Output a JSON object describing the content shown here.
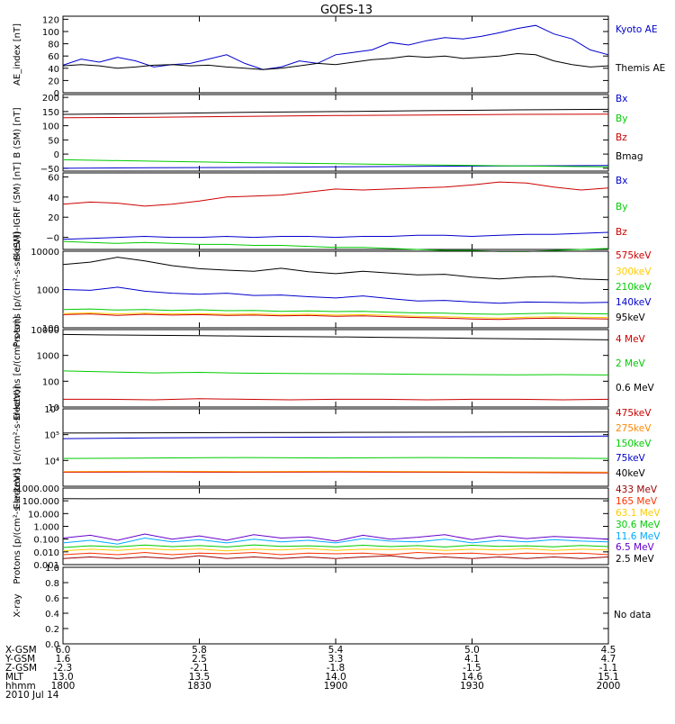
{
  "title": "GOES-13",
  "date_label": "2010 Jul 14",
  "no_data_label": "No data",
  "ephemeris": {
    "row_labels": [
      "X-GSM",
      "Y-GSM",
      "Z-GSM",
      "MLT",
      "hhmm"
    ],
    "columns": [
      [
        "6.0",
        "1.6",
        "-2.3",
        "13.0",
        "1800"
      ],
      [
        "5.8",
        "2.5",
        "-2.1",
        "13.5",
        "1830"
      ],
      [
        "5.4",
        "3.3",
        "-1.8",
        "14.0",
        "1900"
      ],
      [
        "5.0",
        "4.1",
        "-1.5",
        "14.6",
        "1930"
      ],
      [
        "4.5",
        "4.7",
        "-1.1",
        "15.1",
        "2000"
      ]
    ]
  },
  "chart_data": [
    {
      "type": "line",
      "ylabel": "AE_index [nT]",
      "ylim": [
        0,
        125
      ],
      "yticks": [
        0,
        20,
        40,
        60,
        80,
        100,
        120
      ],
      "ytick_labels": [
        "0",
        "20",
        "40",
        "60",
        "80",
        "100",
        "120"
      ],
      "x": [
        0,
        4,
        8,
        12,
        16,
        20,
        24,
        28,
        32,
        36,
        40,
        44,
        48,
        52,
        56,
        60,
        64,
        68,
        72,
        76,
        80,
        84,
        88,
        92,
        96,
        100,
        104,
        108,
        112,
        116,
        120
      ],
      "series": [
        {
          "name": "Kyoto AE",
          "color": "#0000cc",
          "values": [
            45,
            55,
            50,
            58,
            52,
            42,
            46,
            48,
            55,
            62,
            48,
            38,
            42,
            52,
            48,
            62,
            66,
            70,
            82,
            78,
            85,
            90,
            88,
            92,
            98,
            105,
            110,
            96,
            88,
            70,
            62
          ]
        },
        {
          "name": "Themis AE",
          "color": "#000000",
          "values": [
            44,
            46,
            44,
            40,
            42,
            45,
            46,
            44,
            45,
            42,
            40,
            38,
            40,
            44,
            48,
            46,
            50,
            54,
            56,
            60,
            58,
            60,
            56,
            58,
            60,
            64,
            62,
            52,
            46,
            42,
            44
          ]
        }
      ]
    },
    {
      "type": "line",
      "ylabel": "B (SM) [nT]",
      "ylim": [
        -60,
        210
      ],
      "yticks": [
        -50,
        0,
        50,
        100,
        150,
        200
      ],
      "ytick_labels": [
        "−50",
        "0",
        "50",
        "100",
        "150",
        "200"
      ],
      "x": [
        0,
        20,
        40,
        60,
        80,
        100,
        120
      ],
      "series": [
        {
          "name": "Bx",
          "color": "#0000cc",
          "values": [
            -50,
            -48,
            -47,
            -45,
            -43,
            -42,
            -40
          ]
        },
        {
          "name": "By",
          "color": "#00cc00",
          "values": [
            -20,
            -25,
            -30,
            -34,
            -38,
            -42,
            -45
          ]
        },
        {
          "name": "Bz",
          "color": "#cc0000",
          "values": [
            128,
            130,
            133,
            136,
            138,
            140,
            141
          ]
        },
        {
          "name": "Bmag",
          "color": "#000000",
          "values": [
            140,
            143,
            147,
            150,
            153,
            156,
            158
          ]
        }
      ]
    },
    {
      "type": "line",
      "ylabel": "B (SM)-IGRF (SM) [nT]",
      "ylim": [
        -12,
        64
      ],
      "yticks": [
        0,
        20,
        40,
        60
      ],
      "ytick_labels": [
        "−0",
        "20",
        "40",
        "60"
      ],
      "x": [
        0,
        6,
        12,
        18,
        24,
        30,
        36,
        42,
        48,
        54,
        60,
        66,
        72,
        78,
        84,
        90,
        96,
        102,
        108,
        114,
        120
      ],
      "series": [
        {
          "name": "Bx",
          "color": "#0000cc",
          "values": [
            -2,
            -1,
            0,
            1,
            0,
            0,
            1,
            0,
            1,
            1,
            0,
            1,
            1,
            2,
            2,
            1,
            2,
            3,
            3,
            4,
            5
          ]
        },
        {
          "name": "By",
          "color": "#00cc00",
          "values": [
            -4,
            -5,
            -6,
            -5,
            -6,
            -7,
            -7,
            -8,
            -8,
            -9,
            -10,
            -10,
            -11,
            -12,
            -13,
            -13,
            -14,
            -14,
            -13,
            -12,
            -11
          ]
        },
        {
          "name": "Bz",
          "color": "#cc0000",
          "values": [
            33,
            35,
            34,
            31,
            33,
            36,
            40,
            41,
            42,
            45,
            48,
            47,
            48,
            49,
            50,
            52,
            55,
            54,
            50,
            47,
            49
          ]
        }
      ]
    },
    {
      "type": "line",
      "ylabel": "Protons [p/(cm²-s-sr-keV)]",
      "yscale": "log",
      "ylim": [
        100,
        10000
      ],
      "yticks": [
        100,
        1000,
        10000
      ],
      "ytick_labels": [
        "100",
        "1000",
        "10000"
      ],
      "x": [
        0,
        6,
        12,
        18,
        24,
        30,
        36,
        42,
        48,
        54,
        60,
        66,
        72,
        78,
        84,
        90,
        96,
        102,
        108,
        114,
        120
      ],
      "series": [
        {
          "name": "575keV",
          "color": "#cc0000",
          "values": [
            220,
            230,
            210,
            225,
            215,
            220,
            210,
            215,
            205,
            210,
            200,
            205,
            195,
            185,
            180,
            170,
            165,
            175,
            180,
            175,
            170
          ]
        },
        {
          "name": "300keV",
          "color": "#ffcc00",
          "values": [
            235,
            245,
            230,
            240,
            230,
            235,
            225,
            230,
            220,
            225,
            215,
            220,
            210,
            200,
            195,
            185,
            180,
            190,
            195,
            190,
            185
          ]
        },
        {
          "name": "210keV",
          "color": "#00cc00",
          "values": [
            300,
            310,
            290,
            300,
            285,
            295,
            280,
            285,
            270,
            275,
            265,
            270,
            255,
            245,
            240,
            230,
            225,
            235,
            240,
            235,
            230
          ]
        },
        {
          "name": "140keV",
          "color": "#0000cc",
          "values": [
            1000,
            950,
            1150,
            900,
            800,
            750,
            800,
            700,
            720,
            650,
            600,
            680,
            580,
            500,
            520,
            470,
            440,
            470,
            460,
            450,
            460
          ]
        },
        {
          "name": "95keV",
          "color": "#000000",
          "values": [
            4500,
            5200,
            7000,
            5600,
            4200,
            3500,
            3200,
            3000,
            3600,
            2900,
            2600,
            3000,
            2700,
            2400,
            2500,
            2100,
            1900,
            2100,
            2200,
            1900,
            1800
          ]
        }
      ]
    },
    {
      "type": "line",
      "ylabel": "Electrons [e/(cm²-s-sr)]",
      "yscale": "log",
      "ylim": [
        10,
        10000
      ],
      "yticks": [
        10,
        100,
        1000,
        10000
      ],
      "ytick_labels": [
        "10",
        "100",
        "1000",
        "10000"
      ],
      "x": [
        0,
        10,
        20,
        30,
        40,
        50,
        60,
        70,
        80,
        90,
        100,
        110,
        120
      ],
      "series": [
        {
          "name": "4 MeV",
          "color": "#cc0000",
          "values": [
            20,
            20,
            19,
            21,
            20,
            19,
            20,
            20,
            19,
            20,
            20,
            19,
            20
          ]
        },
        {
          "name": "2 MeV",
          "color": "#00cc00",
          "values": [
            250,
            230,
            210,
            220,
            205,
            200,
            195,
            190,
            185,
            180,
            178,
            180,
            175
          ]
        },
        {
          "name": "0.6 MeV",
          "color": "#000000",
          "values": [
            6500,
            6200,
            6000,
            5800,
            5600,
            5400,
            5200,
            5000,
            4800,
            4600,
            4400,
            4200,
            4000
          ]
        }
      ]
    },
    {
      "type": "line",
      "ylabel": "Electrons [e/(cm²-s-sr-keV)]",
      "yscale": "log",
      "ylim": [
        1000,
        1000000
      ],
      "yticks": [
        10000,
        100000,
        1000000
      ],
      "ytick_labels": [
        "10⁴",
        "10⁵",
        "10⁶"
      ],
      "x": [
        0,
        20,
        40,
        60,
        80,
        100,
        120
      ],
      "series": [
        {
          "name": "475keV",
          "color": "#cc0000",
          "values": [
            3500,
            3600,
            3500,
            3600,
            3500,
            3400,
            3300
          ]
        },
        {
          "name": "275keV",
          "color": "#ff8800",
          "values": [
            3700,
            3800,
            3700,
            3800,
            3700,
            3600,
            3500
          ]
        },
        {
          "name": "150keV",
          "color": "#00cc00",
          "values": [
            12000,
            12500,
            13000,
            12500,
            13000,
            12500,
            12000
          ]
        },
        {
          "name": "75keV",
          "color": "#0000cc",
          "values": [
            70000,
            75000,
            78000,
            80000,
            82000,
            85000,
            88000
          ]
        },
        {
          "name": "40keV",
          "color": "#000000",
          "values": [
            115000,
            118000,
            120000,
            122000,
            124000,
            125000,
            126000
          ]
        }
      ]
    },
    {
      "type": "line",
      "ylabel": "Protons [p/(cm²-s-sr-keV)]",
      "yscale": "log",
      "ylim": [
        0.001,
        1000
      ],
      "yticks": [
        0.001,
        0.01,
        0.1,
        1,
        10,
        100,
        1000
      ],
      "ytick_labels": [
        "0.001",
        "0.010",
        "0.100",
        "1.000",
        "10.000",
        "100.000",
        "1000.000"
      ],
      "x": [
        0,
        6,
        12,
        18,
        24,
        30,
        36,
        42,
        48,
        54,
        60,
        66,
        72,
        78,
        84,
        90,
        96,
        102,
        108,
        114,
        120
      ],
      "series": [
        {
          "name": "433 MeV",
          "color": "#990000",
          "values": [
            0.003,
            0.004,
            0.003,
            0.004,
            0.003,
            0.005,
            0.003,
            0.004,
            0.003,
            0.004,
            0.003,
            0.004,
            0.005,
            0.003,
            0.004,
            0.003,
            0.004,
            0.003,
            0.004,
            0.003,
            0.004
          ]
        },
        {
          "name": "165 MeV",
          "color": "#ff3300",
          "values": [
            0.006,
            0.008,
            0.006,
            0.009,
            0.006,
            0.008,
            0.007,
            0.009,
            0.006,
            0.008,
            0.007,
            0.008,
            0.006,
            0.009,
            0.007,
            0.008,
            0.006,
            0.008,
            0.007,
            0.008,
            0.006
          ]
        },
        {
          "name": "63.1 MeV",
          "color": "#ffcc00",
          "values": [
            0.012,
            0.016,
            0.013,
            0.018,
            0.014,
            0.017,
            0.012,
            0.016,
            0.014,
            0.018,
            0.013,
            0.016,
            0.015,
            0.017,
            0.013,
            0.016,
            0.014,
            0.018,
            0.013,
            0.016,
            0.014
          ]
        },
        {
          "name": "30.6 MeV",
          "color": "#00cc00",
          "values": [
            0.022,
            0.03,
            0.025,
            0.034,
            0.026,
            0.031,
            0.024,
            0.035,
            0.027,
            0.03,
            0.025,
            0.033,
            0.026,
            0.031,
            0.024,
            0.033,
            0.027,
            0.03,
            0.025,
            0.032,
            0.026
          ]
        },
        {
          "name": "11.6 MeV",
          "color": "#00aaff",
          "values": [
            0.05,
            0.08,
            0.04,
            0.12,
            0.06,
            0.09,
            0.05,
            0.1,
            0.06,
            0.08,
            0.05,
            0.11,
            0.07,
            0.06,
            0.1,
            0.05,
            0.08,
            0.06,
            0.09,
            0.07,
            0.06
          ]
        },
        {
          "name": "6.5 MeV",
          "color": "#6600cc",
          "values": [
            0.12,
            0.2,
            0.08,
            0.25,
            0.1,
            0.18,
            0.08,
            0.22,
            0.12,
            0.15,
            0.07,
            0.2,
            0.1,
            0.14,
            0.22,
            0.09,
            0.18,
            0.11,
            0.16,
            0.13,
            0.1
          ]
        },
        {
          "name": "2.5 MeV",
          "color": "#000000",
          "values": [
            150,
            145,
            148,
            146,
            150,
            147,
            145,
            148,
            146,
            149,
            147,
            145,
            148,
            146,
            149,
            147,
            145,
            148,
            146,
            147,
            145
          ]
        }
      ]
    },
    {
      "type": "line",
      "ylabel": "X-ray",
      "ylim": [
        0.0,
        1.0
      ],
      "yticks": [
        0.0,
        0.2,
        0.4,
        0.6,
        0.8,
        1.0
      ],
      "ytick_labels": [
        "0.0",
        "0.2",
        "0.4",
        "0.6",
        "0.8",
        "1.0"
      ],
      "series": []
    }
  ]
}
